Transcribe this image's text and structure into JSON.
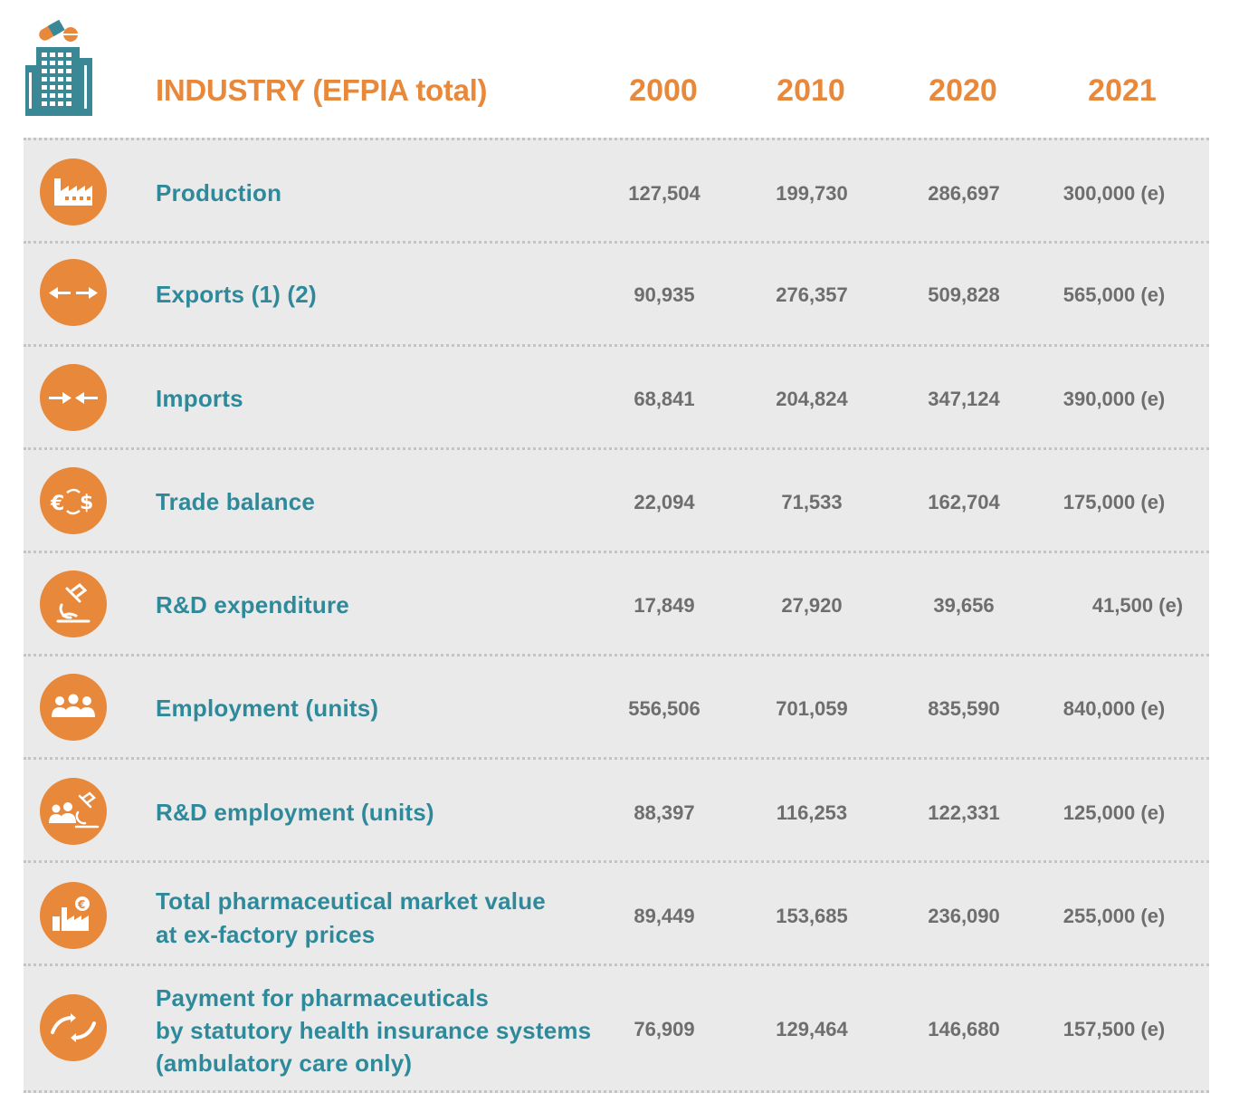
{
  "chart_data": {
    "type": "table",
    "title": "INDUSTRY (EFPIA total)",
    "columns": [
      "2000",
      "2010",
      "2020",
      "2021"
    ],
    "rows": [
      {
        "label": "Production",
        "icon": "factory-icon",
        "values": [
          "127,504",
          "199,730",
          "286,697",
          "300,000 (e)"
        ]
      },
      {
        "label": "Exports (1) (2)",
        "icon": "export-arrows-icon",
        "values": [
          "90,935",
          "276,357",
          "509,828",
          "565,000 (e)"
        ]
      },
      {
        "label": "Imports",
        "icon": "import-arrows-icon",
        "values": [
          "68,841",
          "204,824",
          "347,124",
          "390,000 (e)"
        ]
      },
      {
        "label": "Trade balance",
        "icon": "currency-exchange-icon",
        "values": [
          "22,094",
          "71,533",
          "162,704",
          "175,000 (e)"
        ]
      },
      {
        "label": "R&D expenditure",
        "icon": "microscope-icon",
        "values": [
          "17,849",
          "27,920",
          "39,656",
          "41,500 (e)"
        ]
      },
      {
        "label": "Employment (units)",
        "icon": "people-icon",
        "values": [
          "556,506",
          "701,059",
          "835,590",
          "840,000 (e)"
        ]
      },
      {
        "label": "R&D employment (units)",
        "icon": "people-microscope-icon",
        "values": [
          "88,397",
          "116,253",
          "122,331",
          "125,000 (e)"
        ]
      },
      {
        "label_lines": [
          "Total pharmaceutical market value",
          "at ex-factory prices"
        ],
        "icon": "factory-euro-icon",
        "values": [
          "89,449",
          "153,685",
          "236,090",
          "255,000 (e)"
        ]
      },
      {
        "label_lines": [
          "Payment for pharmaceuticals",
          "by statutory health insurance systems",
          "(ambulatory care only)"
        ],
        "icon": "hands-icon",
        "values": [
          "76,909",
          "129,464",
          "146,680",
          "157,500 (e)"
        ]
      }
    ]
  },
  "colors": {
    "accent": "#E8883A",
    "label": "#2E8A9A",
    "value": "#6E6E6E",
    "row_bg": "#EAEAEA",
    "logo": "#3A8795"
  }
}
